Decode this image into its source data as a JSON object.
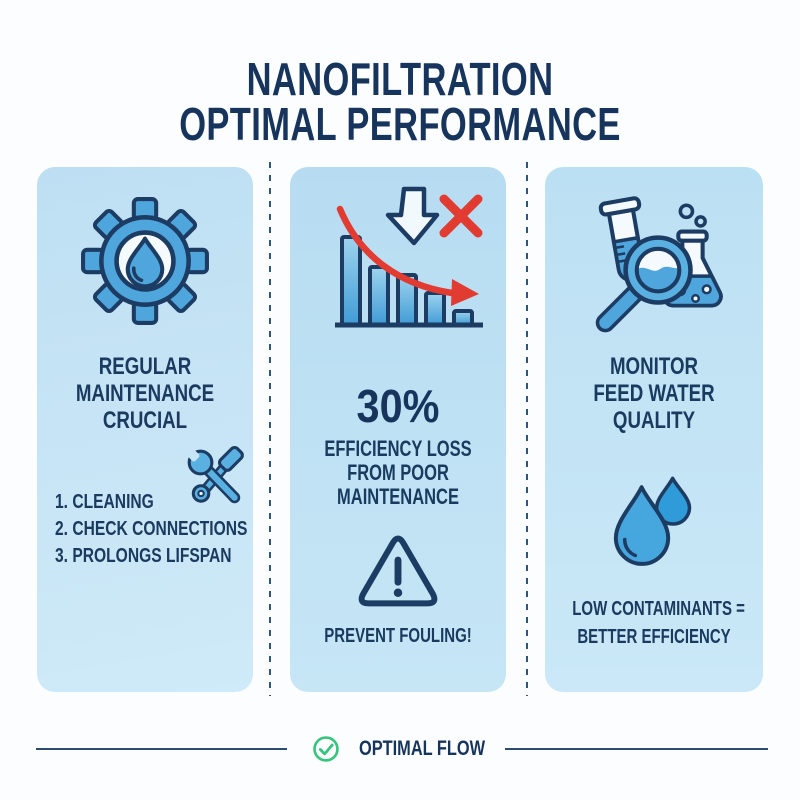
{
  "title": {
    "line1": "NANOFILTRATION",
    "line2": "OPTIMAL PERFORMANCE"
  },
  "panels": {
    "maintenance": {
      "icon": "gear-water-drop-icon",
      "heading": [
        "REGULAR",
        "MAINTENANCE",
        "CRUCIAL"
      ],
      "tools_icon": "wrench-hammer-icon",
      "list": [
        "1. CLEANING",
        "2. CHECK CONNECTIONS",
        "3. PROLONGS LIFSPAN"
      ]
    },
    "efficiency": {
      "icon": "declining-bar-chart-icon",
      "icon_bars": [
        88,
        58,
        50,
        32,
        14
      ],
      "stat": "30%",
      "desc": [
        "EFFICIENCY LOSS",
        "FROM POOR",
        "MAINTENANCE"
      ],
      "warning_icon": "warning-triangle-icon",
      "warning": "PREVENT FOULING!"
    },
    "quality": {
      "icon": "lab-analysis-icon",
      "heading": [
        "MONITOR",
        "FEED WATER",
        "QUALITY"
      ],
      "drops_icon": "water-drops-icon",
      "note": [
        "LOW CONTAMINANTS =",
        "BETTER EFFICIENCY"
      ]
    }
  },
  "footer": {
    "label": "OPTIMAL FLOW",
    "check_icon": "check-circle-icon"
  },
  "colors": {
    "navy_text": "#1b3a60",
    "navy_outline": "#1d3c63",
    "panel_blue": "#c3e3f5",
    "icon_blue": "#4fa6dc",
    "icon_blue_deep": "#2f9bd8",
    "red": "#e23b32",
    "green": "#35c57e",
    "background": "#fcfdfe"
  }
}
